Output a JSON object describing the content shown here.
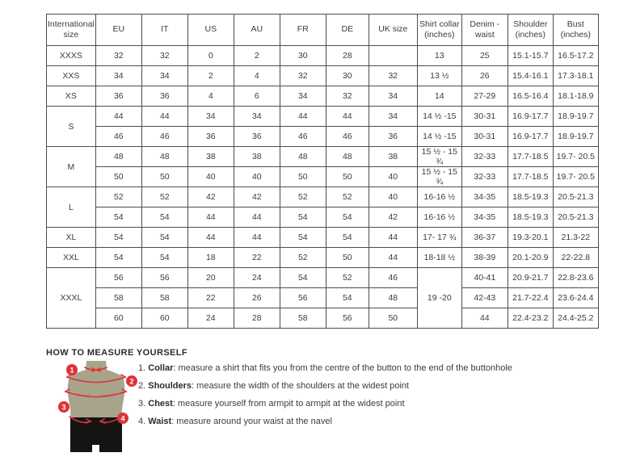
{
  "size_chart": {
    "columns": [
      "International size",
      "EU",
      "IT",
      "US",
      "AU",
      "FR",
      "DE",
      "UK size",
      "Shirt collar (inches)",
      "Denim - waist",
      "Shoulder (inches)",
      "Bust (inches)"
    ],
    "rows": [
      {
        "size": "XXXS",
        "sizeSpan": 1,
        "cells": [
          "32",
          "32",
          "0",
          "2",
          "30",
          "28",
          "",
          "13",
          "25",
          "15.1-15.7",
          "16.5-17.2"
        ]
      },
      {
        "size": "XXS",
        "sizeSpan": 1,
        "cells": [
          "34",
          "34",
          "2",
          "4",
          "32",
          "30",
          "32",
          "13 ½",
          "26",
          "15.4-16.1",
          "17.3-18.1"
        ]
      },
      {
        "size": "XS",
        "sizeSpan": 1,
        "cells": [
          "36",
          "36",
          "4",
          "6",
          "34",
          "32",
          "34",
          "14",
          "27-29",
          "16.5-16.4",
          "18.1-18.9"
        ]
      },
      {
        "size": "S",
        "sizeSpan": 2,
        "cells": [
          "44",
          "44",
          "34",
          "34",
          "44",
          "44",
          "34",
          "14 ½ -15",
          "30-31",
          "16.9-17.7",
          "18.9-19.7"
        ]
      },
      {
        "cells": [
          "46",
          "46",
          "36",
          "36",
          "46",
          "46",
          "36",
          "14 ½ -15",
          "30-31",
          "16.9-17.7",
          "18.9-19.7"
        ]
      },
      {
        "size": "M",
        "sizeSpan": 2,
        "cells": [
          "48",
          "48",
          "38",
          "38",
          "48",
          "48",
          "38",
          "15 ½ - 15 ¾",
          "32-33",
          "17.7-18.5",
          "19.7- 20.5"
        ]
      },
      {
        "cells": [
          "50",
          "50",
          "40",
          "40",
          "50",
          "50",
          "40",
          "15 ½ - 15 ¾",
          "32-33",
          "17.7-18.5",
          "19.7- 20.5"
        ]
      },
      {
        "size": "L",
        "sizeSpan": 2,
        "cells": [
          "52",
          "52",
          "42",
          "42",
          "52",
          "52",
          "40",
          "16-16 ½",
          "34-35",
          "18.5-19.3",
          "20.5-21.3"
        ]
      },
      {
        "cells": [
          "54",
          "54",
          "44",
          "44",
          "54",
          "54",
          "42",
          "16-16 ½",
          "34-35",
          "18.5-19.3",
          "20.5-21.3"
        ]
      },
      {
        "size": "XL",
        "sizeSpan": 1,
        "cells": [
          "54",
          "54",
          "44",
          "44",
          "54",
          "54",
          "44",
          "17- 17 ¾",
          "36-37",
          "19.3-20.1",
          "21.3-22"
        ]
      },
      {
        "size": "XXL",
        "sizeSpan": 1,
        "cells": [
          "54",
          "54",
          "18",
          "22",
          "52",
          "50",
          "44",
          "18-18 ½",
          "38-39",
          "20.1-20.9",
          "22-22.8"
        ]
      },
      {
        "size": "XXXL",
        "sizeSpan": 3,
        "spans": {
          "7": 3
        },
        "cells": [
          "56",
          "56",
          "20",
          "24",
          "54",
          "52",
          "46",
          "19 -20",
          "40-41",
          "20.9-21.7",
          "22.8-23.6"
        ]
      },
      {
        "cells": [
          "58",
          "58",
          "22",
          "26",
          "56",
          "54",
          "48",
          null,
          "42-43",
          "21.7-22.4",
          "23.6-24.4"
        ]
      },
      {
        "cells": [
          "60",
          "60",
          "24",
          "28",
          "58",
          "56",
          "50",
          null,
          "44",
          "22.4-23.2",
          "24.4-25.2"
        ]
      }
    ]
  },
  "measure": {
    "title": "HOW TO MEASURE YOURSELF",
    "steps": [
      {
        "num": "1.",
        "label": "Collar",
        "text": ": measure a shirt that fits you from the centre of the button to the end of the buttonhole"
      },
      {
        "num": "2.",
        "label": "Shoulders",
        "text": ": measure the width of the shoulders at the widest point"
      },
      {
        "num": "3.",
        "label": "Chest",
        "text": ": measure yourself from armpit to armpit at the widest point"
      },
      {
        "num": "4.",
        "label": "Waist",
        "text": ": measure around your waist at the navel"
      }
    ],
    "figure_badges": [
      "1",
      "2",
      "3",
      "4"
    ],
    "colors": {
      "accent_red": "#e03238",
      "torso": "#a8a48c",
      "shorts": "#141414",
      "border": "#4d4d4d"
    }
  }
}
